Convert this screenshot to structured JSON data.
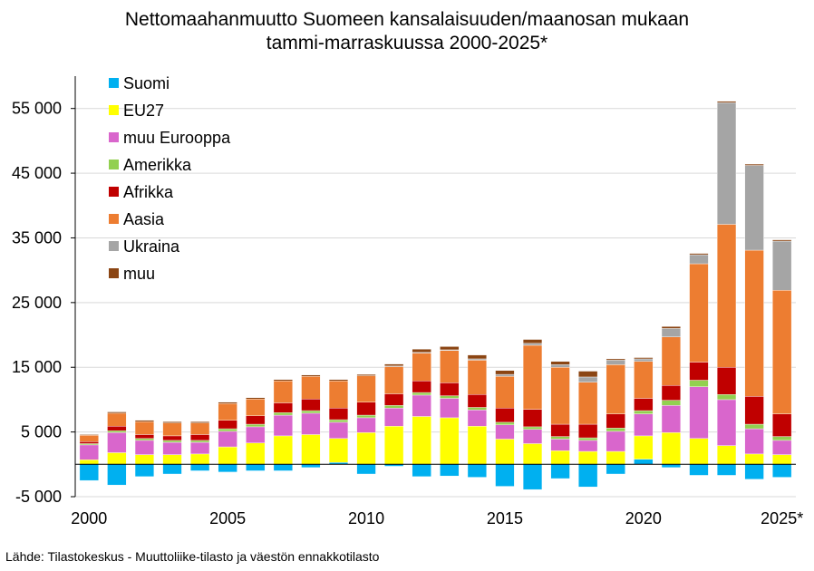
{
  "chart_data": {
    "type": "bar",
    "stacked": true,
    "title_lines": [
      "Nettomaahanmuutto Suomeen kansalaisuuden/maanosan mukaan",
      "tammi-marraskuussa 2000-2025*"
    ],
    "categories": [
      "2000",
      "2001",
      "2002",
      "2003",
      "2004",
      "2005",
      "2006",
      "2007",
      "2008",
      "2009",
      "2010",
      "2011",
      "2012",
      "2013",
      "2014",
      "2015",
      "2016",
      "2017",
      "2018",
      "2019",
      "2020",
      "2021",
      "2022",
      "2023",
      "2024",
      "2025*"
    ],
    "x_tick_labels": [
      "2000",
      "2005",
      "2010",
      "2015",
      "2020",
      "2025*"
    ],
    "ylim": [
      -5000,
      60000
    ],
    "y_ticks": [
      -5000,
      5000,
      15000,
      25000,
      35000,
      45000,
      55000
    ],
    "y_tick_labels": [
      "-5 000",
      "5 000",
      "15 000",
      "25 000",
      "35 000",
      "45 000",
      "55 000"
    ],
    "grid": true,
    "legend_position": "top-left",
    "series": [
      {
        "name": "Suomi",
        "color": "#00b0f0",
        "values": [
          -2500,
          -3200,
          -1900,
          -1500,
          -1000,
          -1200,
          -1000,
          -1000,
          -500,
          300,
          -1500,
          -300,
          -1900,
          -1800,
          -2000,
          -3400,
          -3900,
          -2200,
          -3500,
          -1500,
          800,
          -500,
          -1700,
          -1700,
          -2300,
          -2000
        ]
      },
      {
        "name": "EU27",
        "color": "#ffff00",
        "values": [
          700,
          1800,
          1500,
          1500,
          1600,
          2700,
          3300,
          4400,
          4600,
          3700,
          4900,
          5900,
          7400,
          7200,
          5900,
          3900,
          3200,
          2100,
          2000,
          2000,
          3600,
          4900,
          4000,
          2900,
          1600,
          1500
        ]
      },
      {
        "name": "muu Eurooppa",
        "color": "#d966cc",
        "values": [
          2300,
          3100,
          2200,
          1900,
          1800,
          2400,
          2500,
          3200,
          3300,
          2500,
          2300,
          2800,
          3300,
          3000,
          2500,
          2200,
          2200,
          1800,
          1700,
          3100,
          3400,
          4200,
          8000,
          7100,
          3900,
          2200
        ]
      },
      {
        "name": "Amerikka",
        "color": "#92d050",
        "values": [
          200,
          300,
          300,
          300,
          300,
          400,
          400,
          400,
          400,
          400,
          400,
          400,
          400,
          400,
          400,
          400,
          400,
          400,
          400,
          500,
          500,
          800,
          1000,
          800,
          700,
          600
        ]
      },
      {
        "name": "Afrikka",
        "color": "#c00000",
        "values": [
          300,
          700,
          600,
          700,
          900,
          1300,
          1300,
          1500,
          1800,
          1800,
          2000,
          1800,
          1800,
          2000,
          2000,
          2200,
          2700,
          1900,
          2100,
          2200,
          1900,
          2300,
          2800,
          4200,
          4300,
          3500
        ]
      },
      {
        "name": "Aasia",
        "color": "#ed7d31",
        "values": [
          1000,
          2000,
          2000,
          2000,
          1800,
          2600,
          2600,
          3400,
          3500,
          4200,
          4100,
          4200,
          4300,
          5000,
          5300,
          4900,
          9900,
          8800,
          6500,
          7600,
          5700,
          7500,
          15200,
          22100,
          22600,
          19100
        ]
      },
      {
        "name": "Ukraina",
        "color": "#a5a5a5",
        "values": [
          0,
          0,
          0,
          0,
          0,
          0,
          0,
          0,
          0,
          0,
          0,
          100,
          100,
          100,
          200,
          300,
          300,
          400,
          800,
          700,
          400,
          1300,
          1400,
          18800,
          13100,
          7600
        ]
      },
      {
        "name": "muu",
        "color": "#8b4513",
        "values": [
          100,
          200,
          200,
          200,
          200,
          200,
          200,
          200,
          200,
          200,
          200,
          300,
          500,
          500,
          600,
          600,
          600,
          500,
          900,
          200,
          200,
          300,
          200,
          200,
          200,
          200
        ]
      }
    ]
  },
  "source": "Lähde: Tilastokeskus - Muuttoliike-tilasto ja väestön ennakkotilasto"
}
